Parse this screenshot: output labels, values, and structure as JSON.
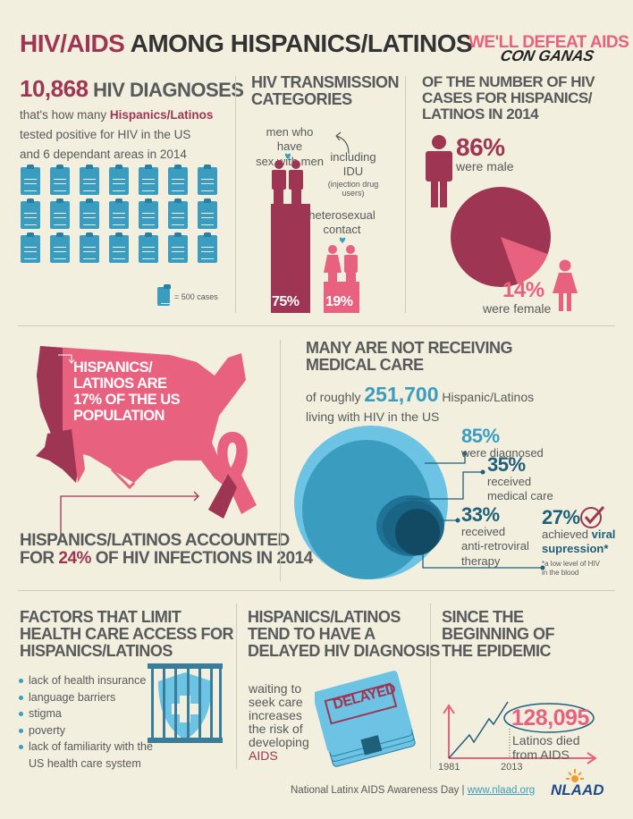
{
  "header": {
    "title_part1": "HIV/AIDS",
    "title_part2": "AMONG HISPANICS/LATINOS",
    "slogan_line1": "WE'LL DEFEAT AIDS",
    "slogan_line2": "CON GANAS"
  },
  "diagnoses": {
    "number": "10,868",
    "label": "HIV DIAGNOSES",
    "text_before": "that's how many",
    "highlight": "Hispanics/Latinos",
    "text_line2": "tested positive for HIV in the US",
    "text_line3": "and 6 dependant areas in 2014",
    "icon": "clipboard-icon",
    "icon_count": 21,
    "legend": "= 500 cases"
  },
  "transmission": {
    "title_line1": "HIV TRANSMISSION",
    "title_line2": "CATEGORIES",
    "msm_line1": "men who have",
    "msm_line2": "sex with men",
    "idu_label": "including IDU",
    "idu_detail": "(injection drug users)",
    "hetero_line1": "heterosexual",
    "hetero_line2": "contact",
    "msm_percent": "75%",
    "hetero_percent": "19%",
    "msm_value": 75,
    "hetero_value": 19
  },
  "gender": {
    "title_line1": "OF THE NUMBER OF HIV",
    "title_line2": "CASES FOR HISPANICS/",
    "title_line3": "LATINOS IN 2014",
    "male_percent": "86%",
    "male_label": "were male",
    "female_percent": "14%",
    "female_label": "were female",
    "male_value": 86,
    "female_value": 14
  },
  "population": {
    "map_line1": "HISPANICS/",
    "map_line2": "LATINOS ARE",
    "map_line3": "17% OF THE US",
    "map_line4": "POPULATION",
    "accounted_line1": "HISPANICS/LATINOS ACCOUNTED",
    "accounted_for": "FOR",
    "accounted_pct": "24%",
    "accounted_rest": "OF HIV INFECTIONS IN 2014"
  },
  "care": {
    "title_line1": "MANY ARE NOT RECEIVING",
    "title_line2": "MEDICAL CARE",
    "intro_before": "of roughly",
    "intro_number": "251,700",
    "intro_after": "Hispanic/Latinos",
    "intro_line2": "living with HIV in the US",
    "stages": [
      {
        "percent": "85%",
        "line1": "were diagnosed",
        "line2": "",
        "line3": ""
      },
      {
        "percent": "35%",
        "line1": "received",
        "line2": "medical care",
        "line3": ""
      },
      {
        "percent": "33%",
        "line1": "received",
        "line2": "anti-retroviral",
        "line3": "therapy"
      }
    ],
    "viral": {
      "percent": "27%",
      "text": "achieved",
      "highlight1": "viral",
      "highlight2": "supression*",
      "footnote_line1": "*a low level of HIV",
      "footnote_line2": "in the blood"
    },
    "colors": [
      "#6cc3e4",
      "#3a9dc0",
      "#1f7396",
      "#124a63"
    ]
  },
  "factors": {
    "title_line1": "FACTORS THAT LIMIT",
    "title_line2": "HEALTH CARE ACCESS FOR",
    "title_line3": "HISPANICS/LATINOS",
    "items": [
      "lack of health insurance",
      "language barriers",
      "stigma",
      "poverty",
      "lack of familiarity with the",
      "US health care system"
    ]
  },
  "delayed": {
    "title_line1": "HISPANICS/LATINOS",
    "title_line2": "TEND TO HAVE A",
    "title_line3": "DELAYED HIV DIAGNOSIS",
    "text_lines": [
      "waiting to",
      "seek care",
      "increases",
      "the risk of",
      "developing"
    ],
    "text_highlight": "AIDS",
    "stamp": "DELAYED"
  },
  "epidemic": {
    "title_line1": "SINCE THE",
    "title_line2": "BEGINNING OF",
    "title_line3": "THE EPIDEMIC",
    "number": "128,095",
    "label_line1": "Latinos died",
    "label_line2": "from AIDS",
    "year_start": "1981",
    "year_end": "2013"
  },
  "footer": {
    "text": "National Latinx AIDS Awareness Day |",
    "link": "www.nlaad.org",
    "logo": "NLAAD"
  },
  "colors": {
    "background": "#f2efdf",
    "maroon": "#9e3553",
    "pink": "#e8617f",
    "blue": "#3a9dc0",
    "gray": "#58595b"
  }
}
